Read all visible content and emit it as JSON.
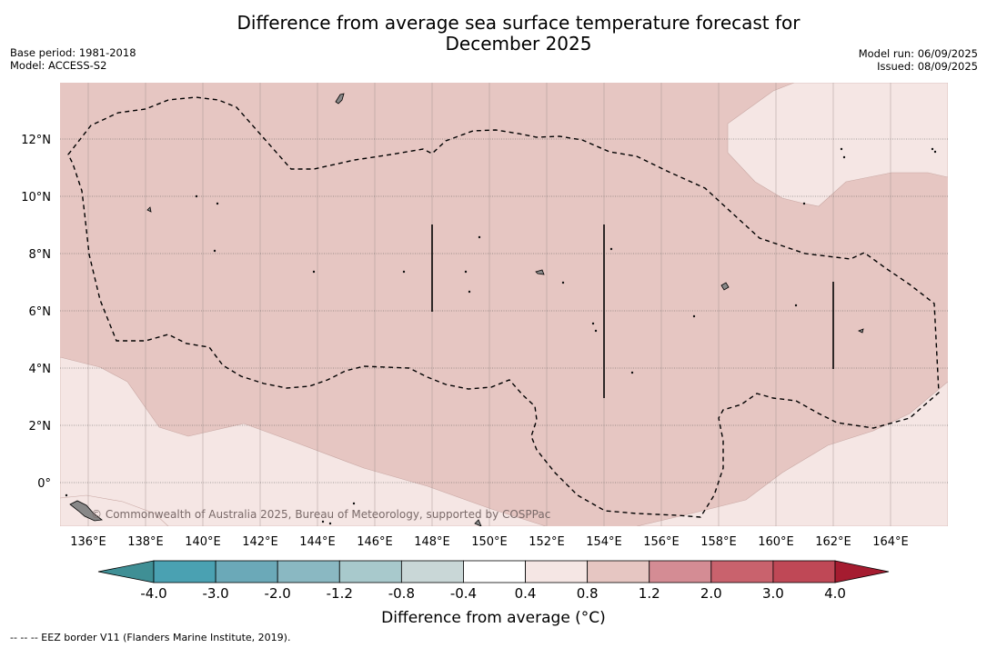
{
  "title_line1": "Difference from average sea surface temperature forecast for",
  "title_line2": "December 2025",
  "meta_left": [
    "Base period: 1981-2018",
    "Model: ACCESS-S2"
  ],
  "meta_right": [
    "Model run: 06/09/2025",
    "Issued: 08/09/2025"
  ],
  "copyright": "© Commonwealth of Australia 2025, Bureau of Meteorology, supported by COSPPac",
  "lon_labels": [
    "136°E",
    "138°E",
    "140°E",
    "142°E",
    "144°E",
    "146°E",
    "148°E",
    "150°E",
    "152°E",
    "154°E",
    "156°E",
    "158°E",
    "160°E",
    "162°E",
    "164°E"
  ],
  "lat_labels": [
    "12°N",
    "10°N",
    "8°N",
    "6°N",
    "4°N",
    "2°N",
    "0°"
  ],
  "colorbar": {
    "labels": [
      "-4.0",
      "-3.0",
      "-2.0",
      "-1.2",
      "-0.8",
      "-0.4",
      "0.4",
      "0.8",
      "1.2",
      "2.0",
      "3.0",
      "4.0"
    ],
    "colors": [
      "#3f8f95",
      "#4aa1b2",
      "#6ba9b8",
      "#8ab8c2",
      "#a8c9cc",
      "#c9d7d7",
      "#ffffff",
      "#f5e6e4",
      "#e6c6c2",
      "#d48c94",
      "#c9626d",
      "#bf4856",
      "#a51c30"
    ],
    "title": "Difference from average (°C)"
  },
  "eez_note": "--  --  -- EEZ border V11 (Flanders Marine Institute, 2019).",
  "fill_colors": {
    "anomaly_0_4_to_0_8": "#f5e6e4",
    "anomaly_0_8_to_1_2": "#e6c6c2"
  }
}
